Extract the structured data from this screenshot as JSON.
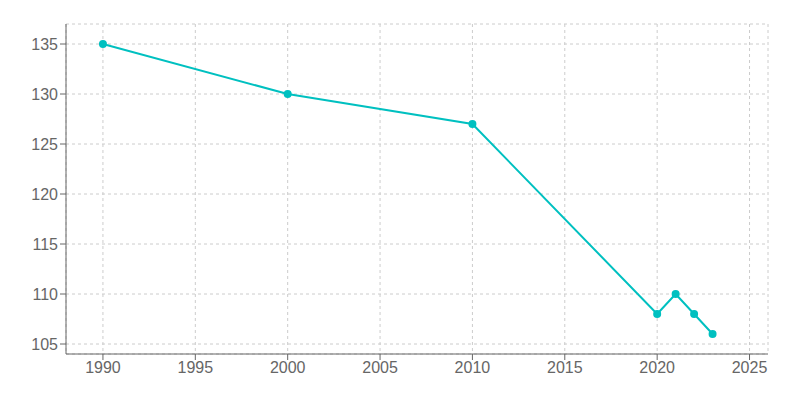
{
  "chart_data": {
    "type": "line",
    "x": [
      1990,
      2000,
      2010,
      2020,
      2021,
      2022,
      2023
    ],
    "values": [
      135,
      130,
      127,
      108,
      110,
      108,
      106
    ],
    "color": "#00C0C0",
    "marker": "circle",
    "xlim": [
      1988,
      2026
    ],
    "ylim": [
      104,
      137
    ],
    "xticks": [
      1990,
      1995,
      2000,
      2005,
      2010,
      2015,
      2020,
      2025
    ],
    "yticks": [
      105,
      110,
      115,
      120,
      125,
      130,
      135
    ],
    "grid": true
  }
}
